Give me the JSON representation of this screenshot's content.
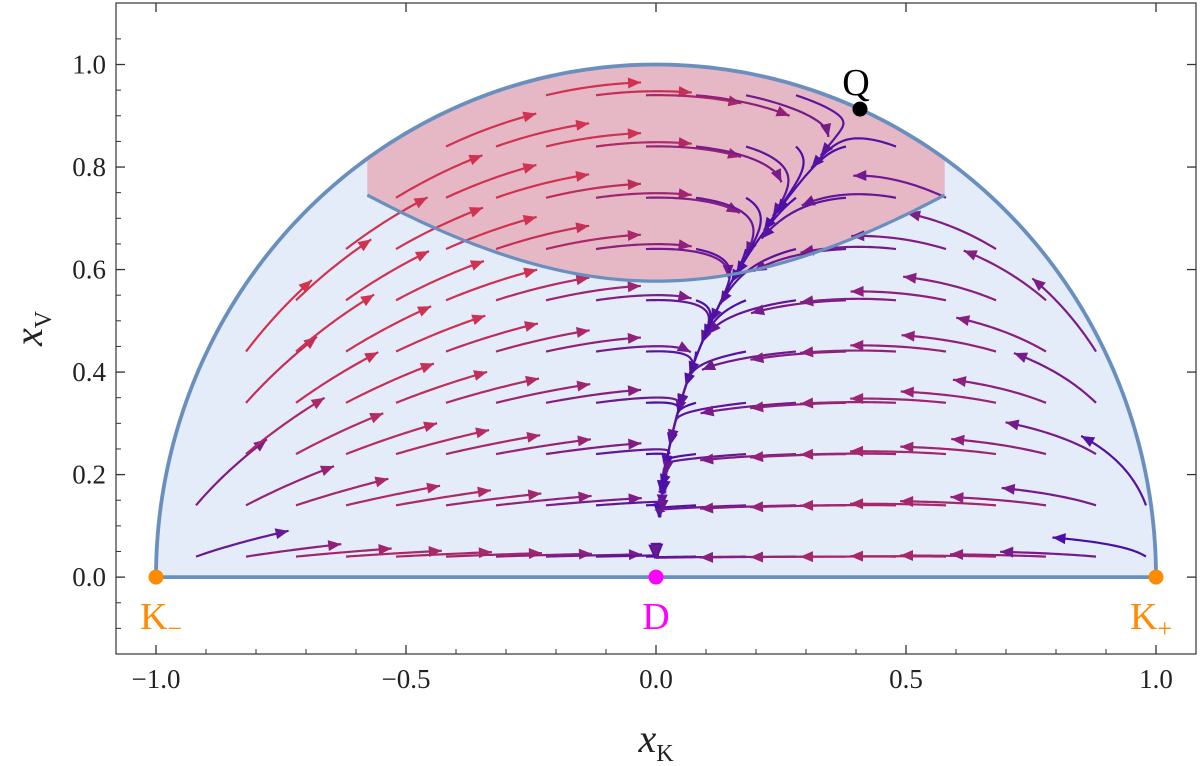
{
  "chart_data": {
    "type": "streamplot",
    "xlabel": "x",
    "xlabel_sub": "K",
    "ylabel": "x",
    "ylabel_sub": "V",
    "xlim": [
      -1.08,
      1.08
    ],
    "ylim": [
      -0.15,
      1.12
    ],
    "x_ticks": [
      -1.0,
      -0.5,
      0.0,
      0.5,
      1.0
    ],
    "x_tick_labels": [
      "−1.0",
      "−0.5",
      "0.0",
      "0.5",
      "1.0"
    ],
    "y_ticks": [
      0.0,
      0.2,
      0.4,
      0.6,
      0.8,
      1.0
    ],
    "y_tick_labels": [
      "0.0",
      "0.2",
      "0.4",
      "0.6",
      "0.8",
      "1.0"
    ],
    "grid": false,
    "region_boundary": "unit upper half-disk x_K^2 + x_V^2 <= 1",
    "accelerating_region": {
      "boundary_points": [
        [
          -0.577,
          0.816
        ],
        [
          -0.4,
          0.687
        ],
        [
          -0.2,
          0.607
        ],
        [
          0.0,
          0.577
        ],
        [
          0.2,
          0.607
        ],
        [
          0.4,
          0.687
        ],
        [
          0.577,
          0.816
        ]
      ],
      "fill_color": "#e6b8c6"
    },
    "fixed_points": [
      {
        "label": "K",
        "label_sub": "−",
        "x": -1.0,
        "y": 0.0,
        "color": "#ff8c00"
      },
      {
        "label": "D",
        "label_sub": "",
        "x": 0.0,
        "y": 0.0,
        "color": "#ff00ff"
      },
      {
        "label": "K",
        "label_sub": "+",
        "x": 1.0,
        "y": 0.0,
        "color": "#ff8c00"
      },
      {
        "label": "Q",
        "label_sub": "",
        "x": 0.408,
        "y": 0.913,
        "color": "#000000"
      }
    ],
    "colors": {
      "disk_fill": "#e3ecf8",
      "boundary": "#6a8fbf",
      "stream_cold": "#4b0fa8",
      "stream_hot": "#d1324f",
      "frame": "#333333"
    }
  }
}
